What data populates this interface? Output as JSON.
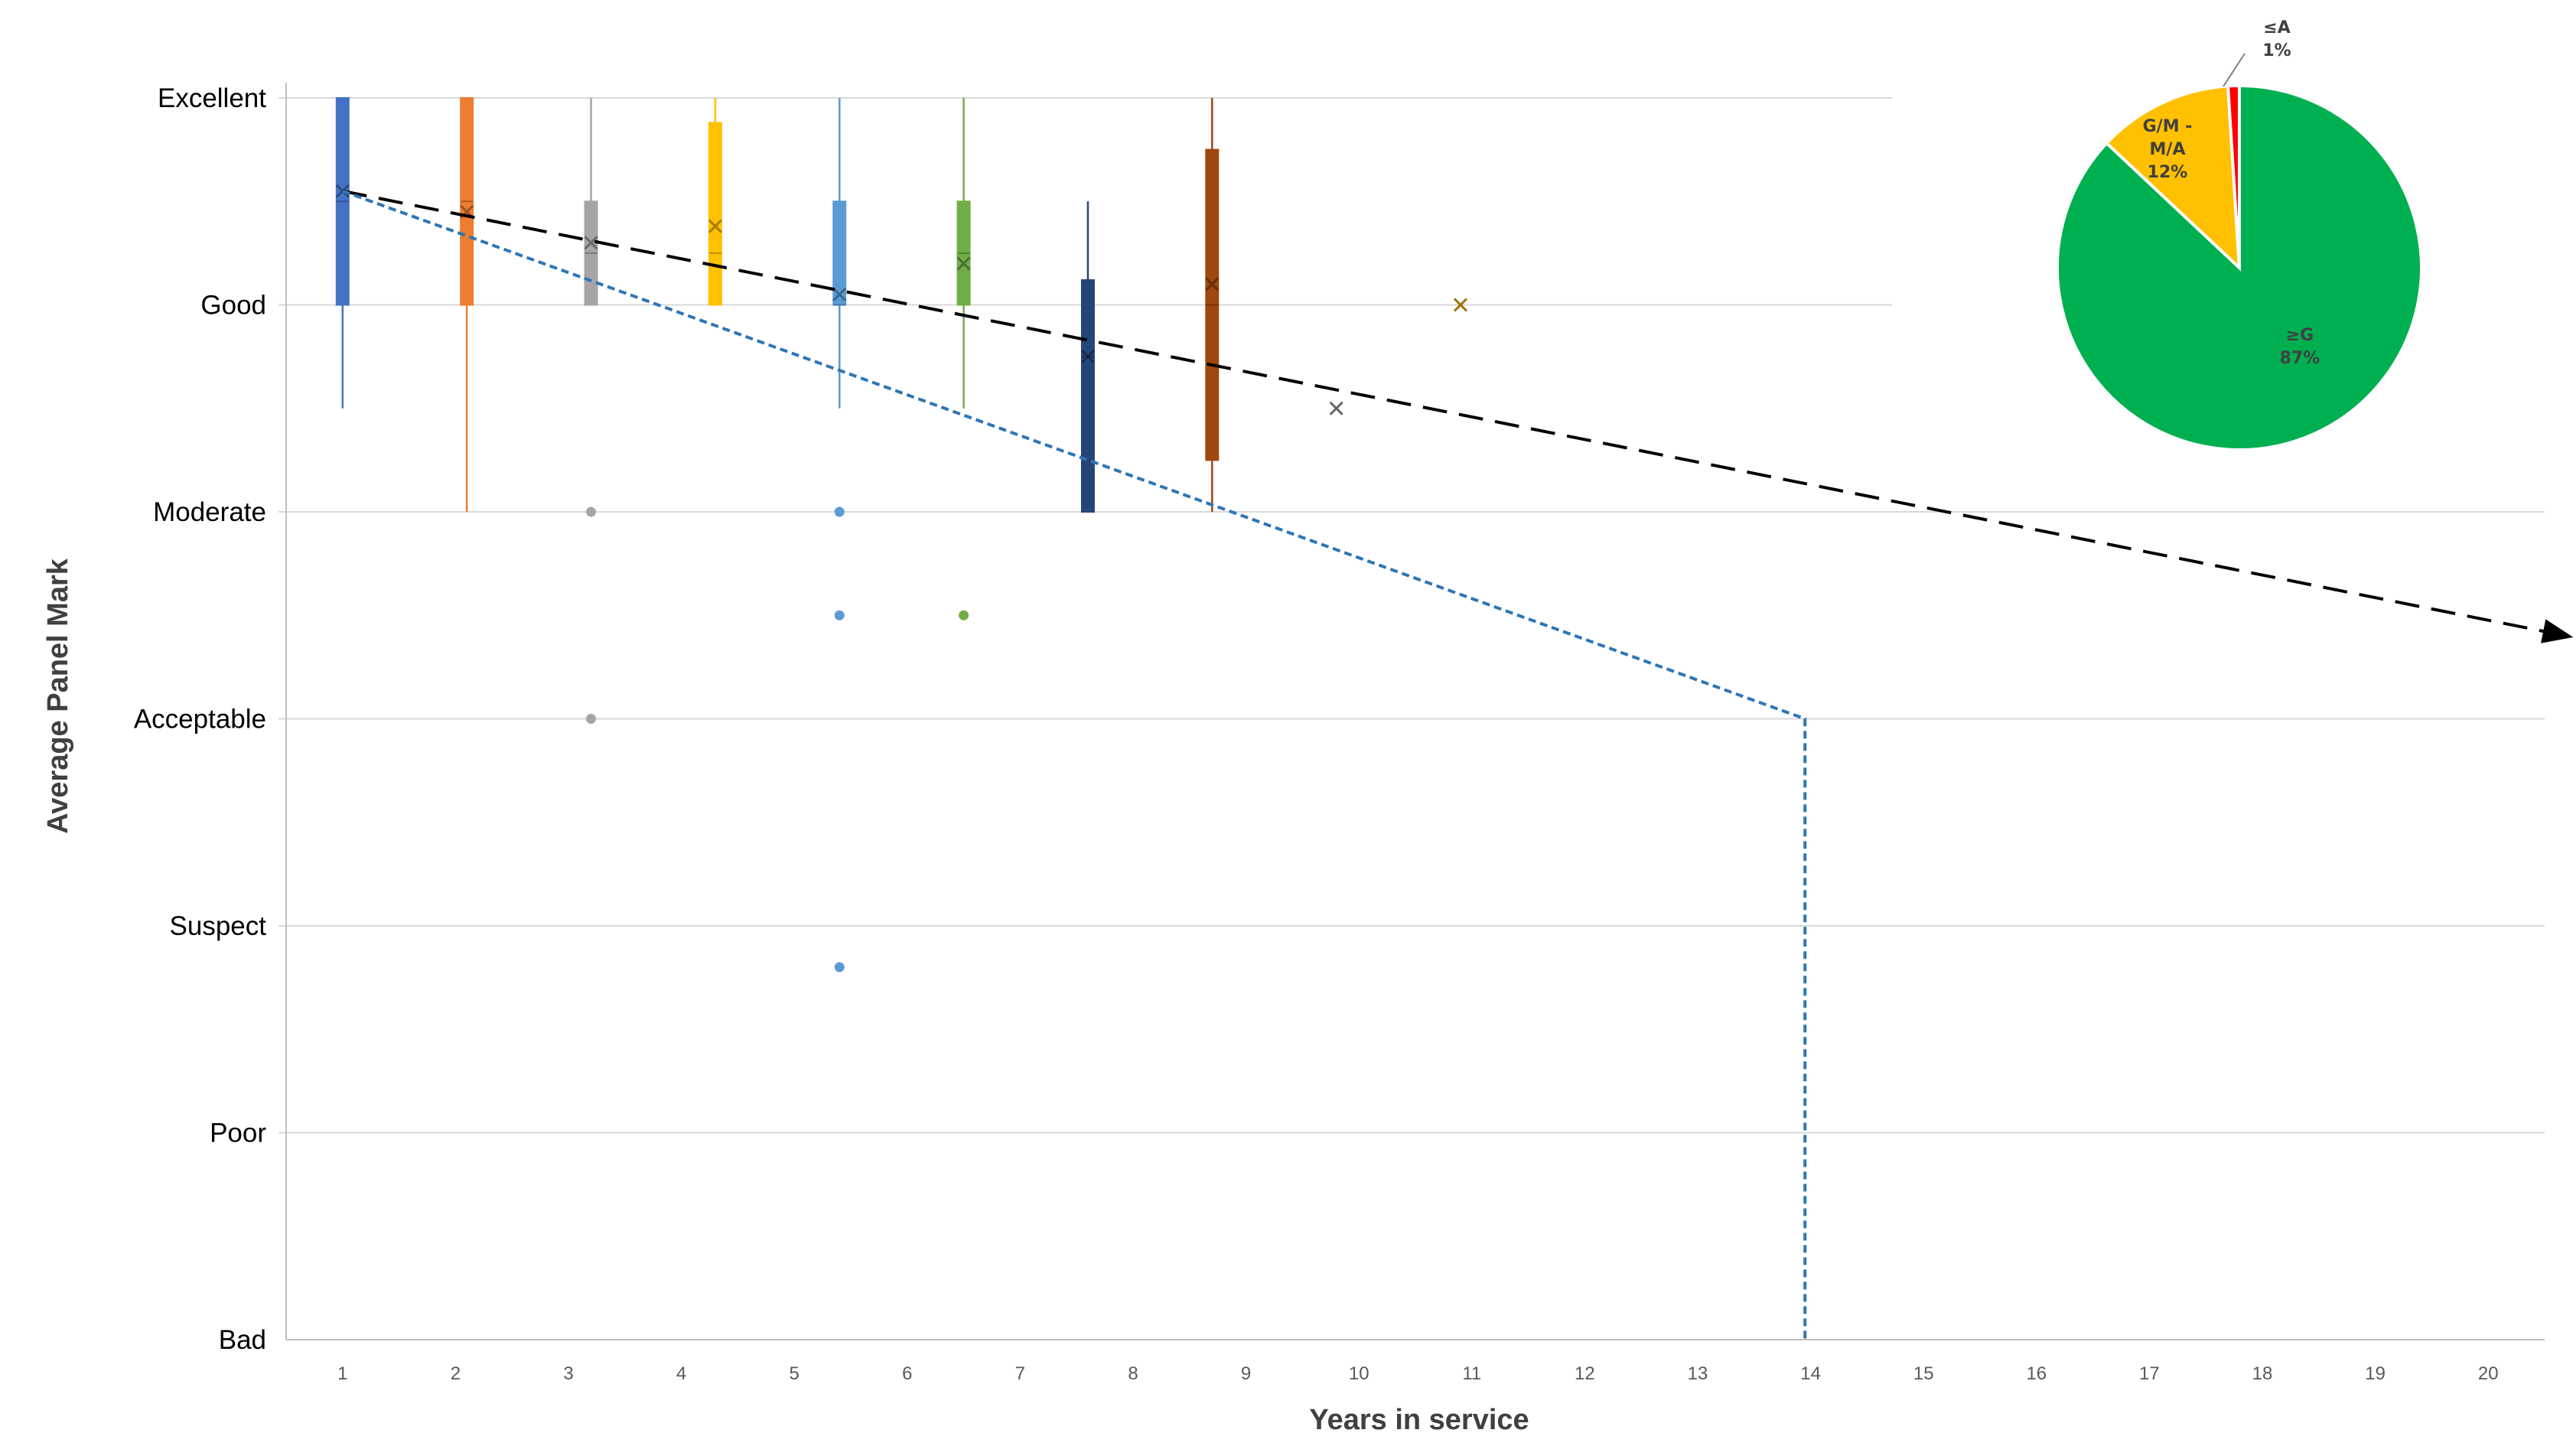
{
  "chart_data": [
    {
      "type": "box",
      "xlabel": "Years in service",
      "ylabel": "Average Panel Mark",
      "y_categories": [
        "Bad",
        "Poor",
        "Suspect",
        "Acceptable",
        "Moderate",
        "Good",
        "Excellent"
      ],
      "y_values_map": {
        "Bad": 0,
        "Poor": 1,
        "Suspect": 2,
        "Acceptable": 3,
        "Moderate": 4,
        "Good": 5,
        "Excellent": 6
      },
      "x_ticks": [
        "1",
        "2",
        "3",
        "4",
        "5",
        "6",
        "7",
        "8",
        "9",
        "10",
        "11",
        "12",
        "13",
        "14",
        "15",
        "16",
        "17",
        "18",
        "19",
        "20"
      ],
      "ylim": [
        0,
        6.1
      ],
      "grid": true,
      "boxes": [
        {
          "x": 0.5,
          "color": "#4472c4",
          "whisker_low": 4.5,
          "q1": 5.0,
          "median": 5.5,
          "q3": 6.0,
          "whisker_high": 6.0,
          "mean": 5.55,
          "outliers": []
        },
        {
          "x": 1.6,
          "color": "#ed7d31",
          "whisker_low": 4.0,
          "q1": 5.0,
          "median": 5.5,
          "q3": 6.0,
          "whisker_high": 6.0,
          "mean": 5.45,
          "outliers": []
        },
        {
          "x": 2.7,
          "color": "#a5a5a5",
          "whisker_low": 5.0,
          "q1": 5.0,
          "median": 5.25,
          "q3": 5.5,
          "whisker_high": 6.0,
          "mean": 5.3,
          "outliers": [
            4.0,
            3.0
          ]
        },
        {
          "x": 3.8,
          "color": "#ffc000",
          "whisker_low": 5.0,
          "q1": 5.0,
          "median": 5.25,
          "q3": 5.88,
          "whisker_high": 6.0,
          "mean": 5.38,
          "outliers": []
        },
        {
          "x": 4.9,
          "color": "#5b9bd5",
          "whisker_low": 4.5,
          "q1": 5.0,
          "median": 5.0,
          "q3": 5.5,
          "whisker_high": 6.0,
          "mean": 5.05,
          "outliers": [
            4.0,
            3.5,
            1.8
          ]
        },
        {
          "x": 6.0,
          "color": "#70ad47",
          "whisker_low": 4.5,
          "q1": 5.0,
          "median": 5.25,
          "q3": 5.5,
          "whisker_high": 6.0,
          "mean": 5.2,
          "outliers": [
            3.5
          ]
        },
        {
          "x": 7.1,
          "color": "#264478",
          "whisker_low": 4.0,
          "q1": 4.0,
          "median": 4.75,
          "q3": 5.12,
          "whisker_high": 5.5,
          "mean": 4.75,
          "outliers": []
        },
        {
          "x": 8.2,
          "color": "#9e480e",
          "whisker_low": 4.0,
          "q1": 4.25,
          "median": 5.0,
          "q3": 5.75,
          "whisker_high": 6.0,
          "mean": 5.1,
          "outliers": []
        },
        {
          "x": 9.3,
          "color": "#636363",
          "whisker_low": null,
          "q1": null,
          "median": null,
          "q3": null,
          "whisker_high": null,
          "mean": 4.5,
          "outliers": []
        },
        {
          "x": 10.4,
          "color": "#997300",
          "whisker_low": null,
          "q1": null,
          "median": null,
          "q3": null,
          "whisker_high": null,
          "mean": 5.0,
          "outliers": []
        }
      ],
      "trend_lines": [
        {
          "style": "dashed",
          "color": "#000000",
          "arrow": true,
          "points": [
            [
              0.5,
              5.55
            ],
            [
              20.2,
              3.4
            ]
          ]
        },
        {
          "style": "dotted",
          "color": "#2e75b6",
          "arrow": false,
          "points": [
            [
              0.5,
              5.55
            ],
            [
              13.45,
              3.0
            ],
            [
              13.45,
              0.0
            ]
          ]
        }
      ]
    },
    {
      "type": "pie",
      "slices": [
        {
          "label": "≥G",
          "value": 87,
          "display": "87%",
          "color": "#00b050"
        },
        {
          "label": "G/M - M/A",
          "value": 12,
          "display": "12%",
          "color": "#ffc000"
        },
        {
          "label": "≤A",
          "value": 1,
          "display": "1%",
          "color": "#ff0000"
        }
      ]
    }
  ]
}
